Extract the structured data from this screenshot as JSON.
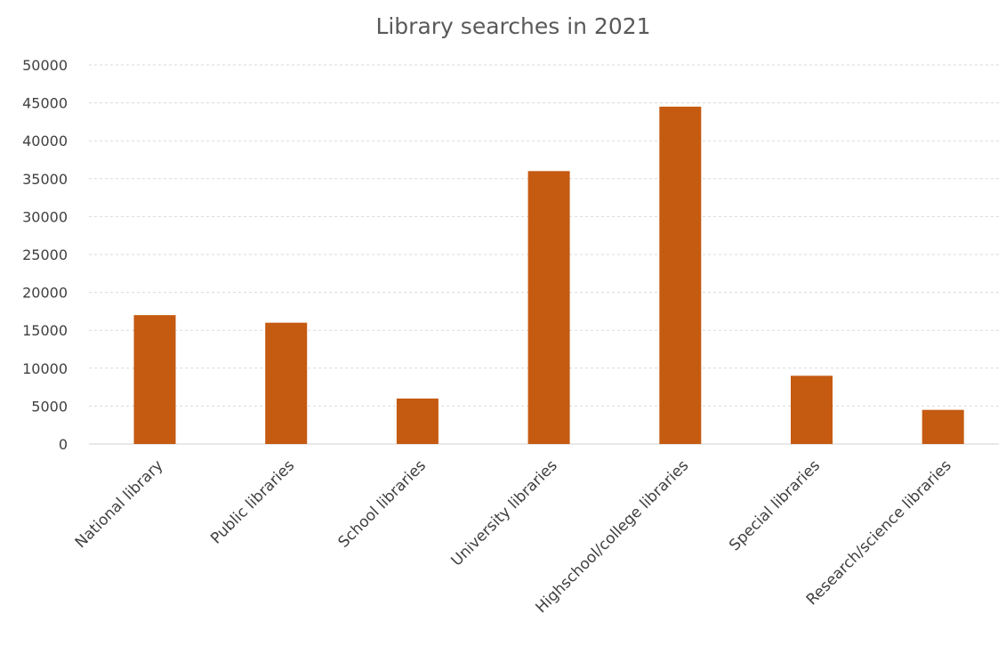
{
  "chart_data": {
    "type": "bar",
    "title": "Library searches in 2021",
    "xlabel": "",
    "ylabel": "",
    "categories": [
      "National library",
      "Public libraries",
      "School libraries",
      "University libraries",
      "Highschool/college libraries",
      "Special libraries",
      "Research/science libraries"
    ],
    "values": [
      17000,
      16000,
      6000,
      36000,
      44500,
      9000,
      4500
    ],
    "ylim": [
      0,
      50000
    ],
    "yticks": [
      "0",
      "5000",
      "10000",
      "15000",
      "20000",
      "25000",
      "30000",
      "35000",
      "40000",
      "45000",
      "50000"
    ],
    "grid": true,
    "legend": "none",
    "bar_color": "#c55a11"
  }
}
